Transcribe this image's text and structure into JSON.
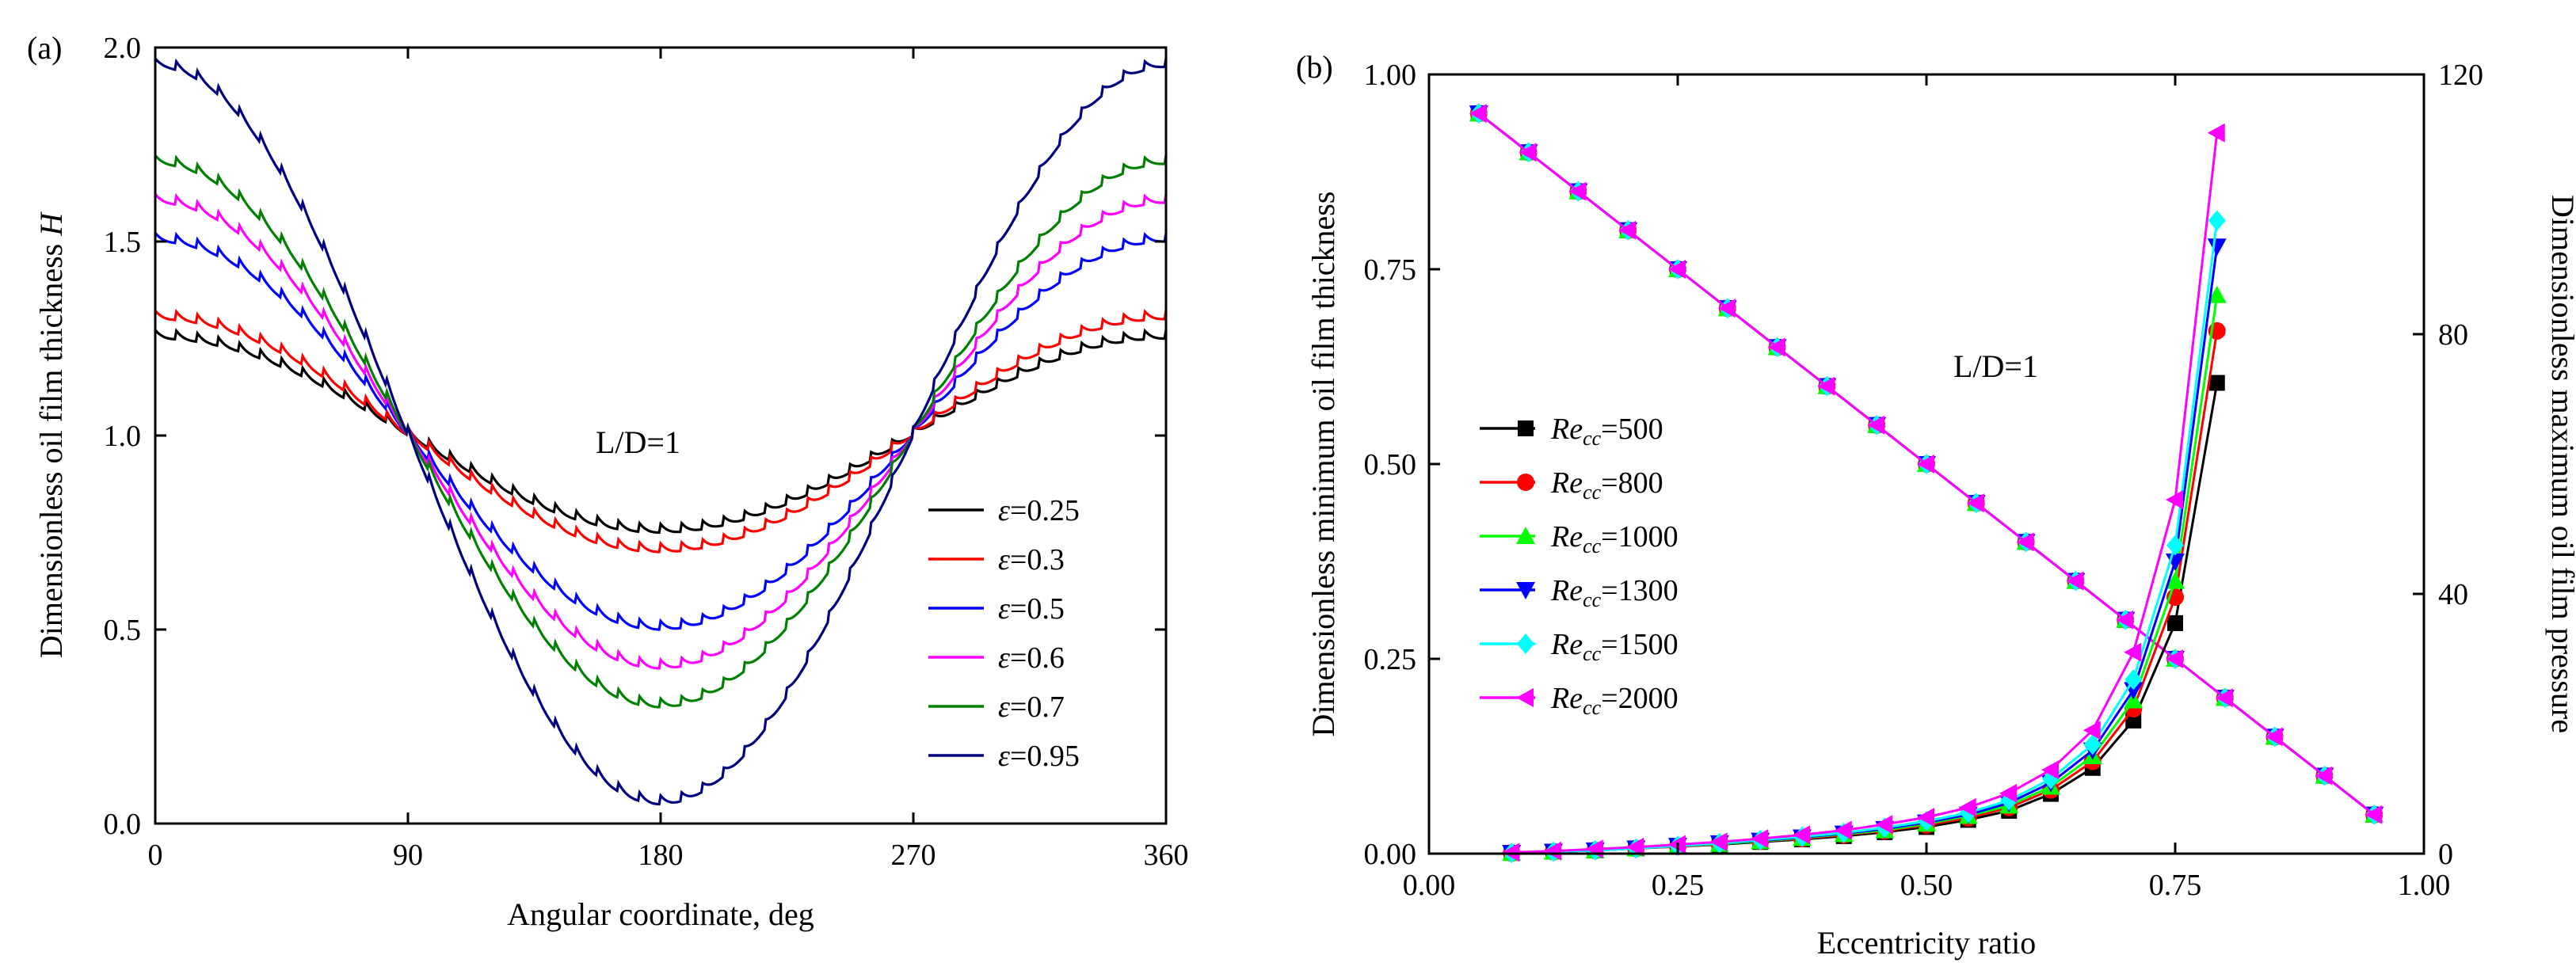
{
  "chart_data": [
    {
      "type": "line",
      "panel_label": "(a)",
      "xlabel": "Angular coordinate, deg",
      "ylabel": "Dimensionless oil film thickness H",
      "ylabel_main": "Dimensionless oil film thickness ",
      "ylabel_symbol": "H",
      "xlim": [
        0,
        360
      ],
      "ylim": [
        0,
        2
      ],
      "xticks": [
        0,
        90,
        180,
        270,
        360
      ],
      "yticks": [
        0.0,
        0.5,
        1.0,
        1.5,
        2.0
      ],
      "ytick_labels": [
        "0.0",
        "0.5",
        "1.0",
        "1.5",
        "2.0"
      ],
      "annotation": "L/D=1",
      "legend_position": "bottom-right",
      "ripple_count": 48,
      "ripple_amplitude": 0.022,
      "series": [
        {
          "symbol": "ε",
          "label": "=0.25",
          "eccentricity": 0.25,
          "color": "#000000"
        },
        {
          "symbol": "ε",
          "label": "=0.3",
          "eccentricity": 0.3,
          "color": "#ff0000"
        },
        {
          "symbol": "ε",
          "label": "=0.5",
          "eccentricity": 0.5,
          "color": "#0000ff"
        },
        {
          "symbol": "ε",
          "label": "=0.6",
          "eccentricity": 0.6,
          "color": "#ff00ff"
        },
        {
          "symbol": "ε",
          "label": "=0.7",
          "eccentricity": 0.7,
          "color": "#008000"
        },
        {
          "symbol": "ε",
          "label": "=0.95",
          "eccentricity": 0.95,
          "color": "#000080"
        }
      ]
    },
    {
      "type": "line",
      "panel_label": "(b)",
      "xlabel": "Eccentricity ratio",
      "ylabel_left": "Dimensionless minimum oil film thickness",
      "ylabel_right": "Dimensionless maximum oil film pressure",
      "xlim": [
        0,
        1
      ],
      "ylim_left": [
        0,
        1
      ],
      "ylim_right": [
        0,
        120
      ],
      "xticks": [
        0,
        0.25,
        0.5,
        0.75,
        1.0
      ],
      "xtick_labels": [
        "0.00",
        "0.25",
        "0.50",
        "0.75",
        "1.00"
      ],
      "yticks_left": [
        0,
        0.25,
        0.5,
        0.75,
        1.0
      ],
      "ytick_labels_left": [
        "0.00",
        "0.25",
        "0.50",
        "0.75",
        "1.00"
      ],
      "yticks_right": [
        0,
        40,
        80,
        120
      ],
      "ytick_labels_right": [
        "0",
        "40",
        "80",
        "120"
      ],
      "annotation": "L/D=1",
      "legend_position": "center-left",
      "thickness_x": [
        0.05,
        0.1,
        0.15,
        0.2,
        0.25,
        0.3,
        0.35,
        0.4,
        0.45,
        0.5,
        0.55,
        0.6,
        0.65,
        0.7,
        0.75,
        0.8,
        0.85,
        0.9,
        0.95
      ],
      "thickness_y": [
        0.95,
        0.9,
        0.85,
        0.8,
        0.75,
        0.7,
        0.65,
        0.6,
        0.55,
        0.5,
        0.45,
        0.4,
        0.35,
        0.3,
        0.25,
        0.2,
        0.15,
        0.1,
        0.05
      ],
      "pressure_x": [
        0.083,
        0.125,
        0.167,
        0.208,
        0.25,
        0.292,
        0.333,
        0.375,
        0.417,
        0.458,
        0.5,
        0.542,
        0.583,
        0.625,
        0.667,
        0.708,
        0.75,
        0.792
      ],
      "series": [
        {
          "name": "Re=500",
          "label_main": "Re",
          "label_sub": "cc",
          "label_value": "=500",
          "color": "#000000",
          "marker": "square",
          "pressure": [
            0.1,
            0.3,
            0.5,
            0.8,
            1.1,
            1.4,
            1.8,
            2.2,
            2.7,
            3.3,
            4.1,
            5.2,
            6.6,
            9.2,
            13.2,
            20.5,
            35.5,
            72.5
          ]
        },
        {
          "name": "Re=800",
          "label_main": "Re",
          "label_sub": "cc",
          "label_value": "=800",
          "color": "#ff0000",
          "marker": "circle",
          "pressure": [
            0.1,
            0.3,
            0.5,
            0.8,
            1.1,
            1.5,
            1.9,
            2.3,
            2.9,
            3.5,
            4.4,
            5.5,
            7.1,
            9.8,
            14.2,
            22.3,
            39.5,
            80.5
          ]
        },
        {
          "name": "Re=1000",
          "label_main": "Re",
          "label_sub": "cc",
          "label_value": "=1000",
          "color": "#00ff00",
          "marker": "triangle-up",
          "pressure": [
            0.1,
            0.3,
            0.5,
            0.8,
            1.2,
            1.5,
            1.9,
            2.4,
            3.0,
            3.6,
            4.6,
            5.8,
            7.4,
            10.3,
            15.0,
            23.6,
            42.0,
            86.0
          ]
        },
        {
          "name": "Re=1300",
          "label_main": "Re",
          "label_sub": "cc",
          "label_value": "=1300",
          "color": "#0000ff",
          "marker": "triangle-down",
          "pressure": [
            0.1,
            0.3,
            0.5,
            0.8,
            1.2,
            1.6,
            2.0,
            2.5,
            3.1,
            3.8,
            4.8,
            6.0,
            7.8,
            10.9,
            15.9,
            25.2,
            45.0,
            93.5
          ]
        },
        {
          "name": "Re=1500",
          "label_main": "Re",
          "label_sub": "cc",
          "label_value": "=1500",
          "color": "#00ffff",
          "marker": "diamond",
          "pressure": [
            0.1,
            0.3,
            0.5,
            0.8,
            1.2,
            1.6,
            2.1,
            2.6,
            3.2,
            4.0,
            5.0,
            6.3,
            8.2,
            11.5,
            16.8,
            26.8,
            47.5,
            97.5
          ]
        },
        {
          "name": "Re=2000",
          "label_main": "Re",
          "label_sub": "cc",
          "label_value": "=2000",
          "color": "#ff00ff",
          "marker": "triangle-left",
          "pressure": [
            0.2,
            0.4,
            0.7,
            1.0,
            1.4,
            1.8,
            2.3,
            2.9,
            3.6,
            4.5,
            5.6,
            7.1,
            9.3,
            12.9,
            19.0,
            31.0,
            54.5,
            111.0
          ]
        }
      ]
    }
  ]
}
